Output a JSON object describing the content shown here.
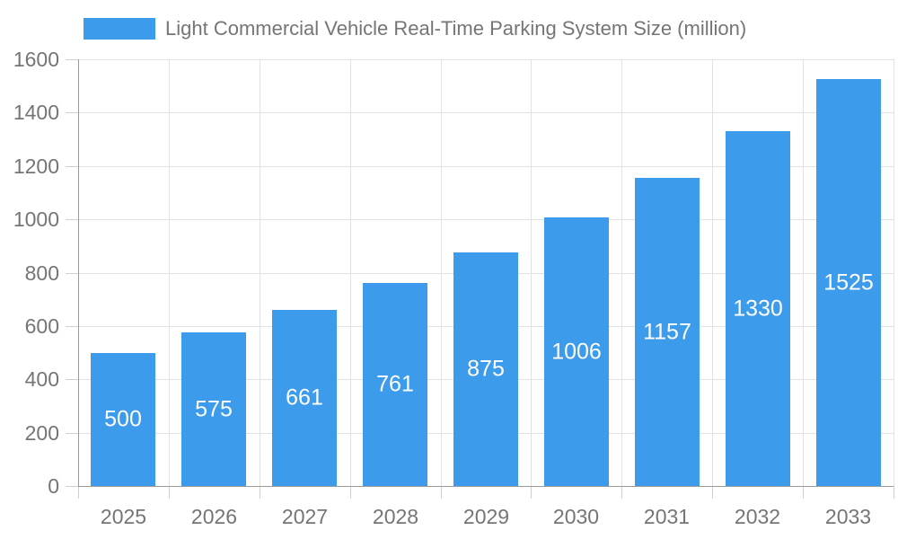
{
  "colors": {
    "bar": "#3D9BEC",
    "axis_line": "#9A9A9A",
    "grid_line": "#E2E2E2",
    "tick_line": "#CFCFCF",
    "axis_text": "#757575",
    "value_text": "#FFFFFF",
    "background": "#FFFFFF"
  },
  "chart_data": {
    "type": "bar",
    "title": "Light Commercial Vehicle Real-Time Parking System Size (million)",
    "categories": [
      "2025",
      "2026",
      "2027",
      "2028",
      "2029",
      "2030",
      "2031",
      "2032",
      "2033"
    ],
    "values": [
      500,
      575,
      661,
      761,
      875,
      1006,
      1157,
      1330,
      1525
    ],
    "xlabel": "",
    "ylabel": "",
    "ylim": [
      0,
      1600
    ],
    "ytick_step": 200,
    "yticks": [
      0,
      200,
      400,
      600,
      800,
      1000,
      1200,
      1400,
      1600
    ],
    "grid": true,
    "legend_position": "top-left",
    "value_label_position": "inside-center"
  }
}
